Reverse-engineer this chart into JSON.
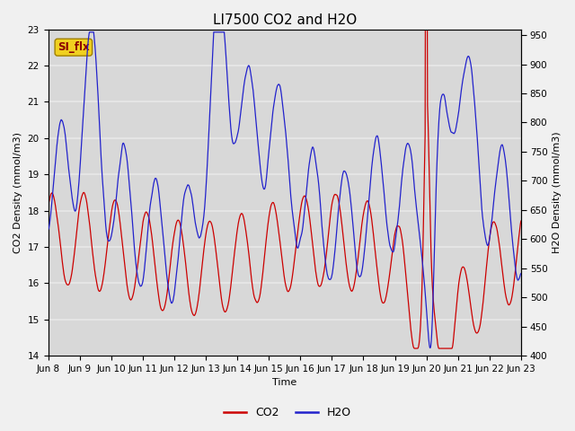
{
  "title": "LI7500 CO2 and H2O",
  "xlabel": "Time",
  "ylabel_left": "CO2 Density (mmol/m3)",
  "ylabel_right": "H2O Density (mmol/m3)",
  "ylim_left": [
    14.0,
    23.0
  ],
  "ylim_right": [
    400,
    960
  ],
  "yticks_left": [
    14.0,
    15.0,
    16.0,
    17.0,
    18.0,
    19.0,
    20.0,
    21.0,
    22.0,
    23.0
  ],
  "yticks_right": [
    400,
    450,
    500,
    550,
    600,
    650,
    700,
    750,
    800,
    850,
    900,
    950
  ],
  "xtick_labels": [
    "Jun 8",
    "Jun 9",
    "Jun 10",
    "Jun 11",
    "Jun 12",
    "Jun 13",
    "Jun 14",
    "Jun 15",
    "Jun 16",
    "Jun 17",
    "Jun 18",
    "Jun 19",
    "Jun 20",
    "Jun 21",
    "Jun 22",
    "Jun 23"
  ],
  "annotation_text": "SI_flx",
  "co2_color": "#cc0000",
  "h2o_color": "#2222cc",
  "fig_bg_color": "#f0f0f0",
  "plot_bg_color": "#d8d8d8",
  "grid_color": "#e8e8e8",
  "title_fontsize": 11,
  "label_fontsize": 8,
  "tick_fontsize": 7.5,
  "legend_fontsize": 9,
  "linewidth": 0.9
}
